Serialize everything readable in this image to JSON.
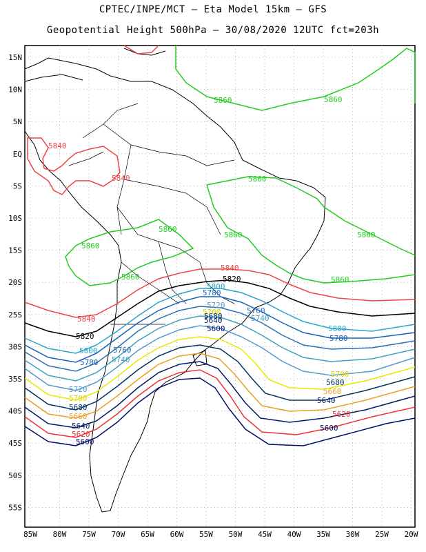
{
  "header": {
    "line1": "CPTEC/INPE/MCT –  Eta Model 15km – GFS",
    "line2": "Geopotential Height 500hPa – 30/08/2020 12UTC fct=203h"
  },
  "axes": {
    "lat_labels": [
      "15N",
      "10N",
      "5N",
      "EQ",
      "5S",
      "10S",
      "15S",
      "20S",
      "25S",
      "30S",
      "35S",
      "40S",
      "45S",
      "50S",
      "55S"
    ],
    "lon_labels": [
      "85W",
      "80W",
      "75W",
      "70W",
      "65W",
      "60W",
      "55W",
      "50W",
      "45W",
      "40W",
      "35W",
      "30W",
      "25W",
      "20W"
    ],
    "grid": "dotted"
  },
  "contours": [
    {
      "level": "5860",
      "color": "#22cc22"
    },
    {
      "level": "5840",
      "color": "#ee4444"
    },
    {
      "level": "5820",
      "color": "#000000"
    },
    {
      "level": "5800",
      "color": "#2aa4c8"
    },
    {
      "level": "5780",
      "color": "#1560bd"
    },
    {
      "level": "5760",
      "color": "#2c6fb0"
    },
    {
      "level": "5740",
      "color": "#40a0c0"
    },
    {
      "level": "5720",
      "color": "#5599cc"
    },
    {
      "level": "5700",
      "color": "#e8e800"
    },
    {
      "level": "5680",
      "color": "#003366"
    },
    {
      "level": "5660",
      "color": "#e8a020"
    },
    {
      "level": "5640",
      "color": "#001a66"
    },
    {
      "level": "5620",
      "color": "#ee3333"
    },
    {
      "level": "5600",
      "color": "#00106a"
    }
  ]
}
